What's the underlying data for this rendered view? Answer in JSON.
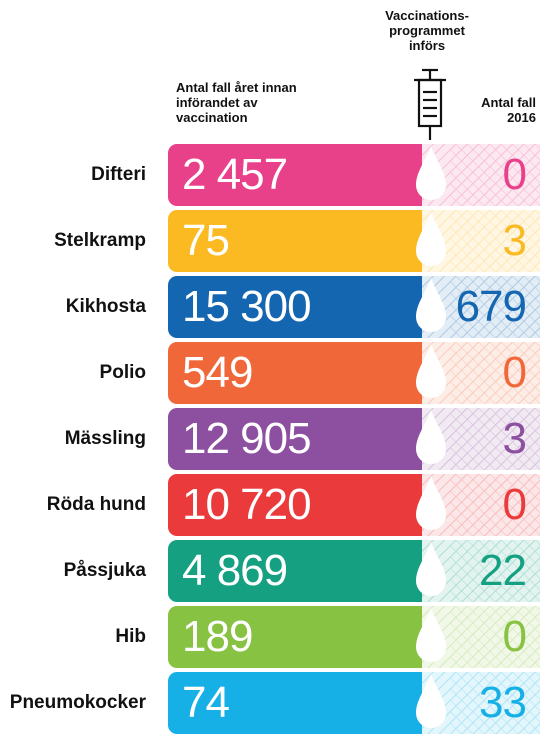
{
  "headers": {
    "before": "Antal fall året innan införandet av vaccination",
    "intro": "Vaccinations-programmet införs",
    "after": "Antal fall 2016"
  },
  "chart_data": {
    "type": "table",
    "categories": [
      "Difteri",
      "Stelkramp",
      "Kikhosta",
      "Polio",
      "Mässling",
      "Röda hund",
      "Påssjuka",
      "Hib",
      "Pneumokocker"
    ],
    "series": [
      {
        "name": "Antal fall året innan införandet av vaccination",
        "values": [
          2457,
          75,
          15300,
          549,
          12905,
          10720,
          4869,
          189,
          74
        ]
      },
      {
        "name": "Antal fall 2016",
        "values": [
          0,
          3,
          679,
          0,
          3,
          0,
          22,
          0,
          33
        ]
      }
    ],
    "colors": [
      "#e8418a",
      "#fbba21",
      "#1566b0",
      "#f0673a",
      "#8d4f9f",
      "#ea3a3c",
      "#15a082",
      "#87c242",
      "#17b0e6"
    ]
  },
  "rows": [
    {
      "label": "Difteri",
      "before": "2 457",
      "after": "0"
    },
    {
      "label": "Stelkramp",
      "before": "75",
      "after": "3"
    },
    {
      "label": "Kikhosta",
      "before": "15 300",
      "after": "679"
    },
    {
      "label": "Polio",
      "before": "549",
      "after": "0"
    },
    {
      "label": "Mässling",
      "before": "12 905",
      "after": "3"
    },
    {
      "label": "Röda hund",
      "before": "10 720",
      "after": "0"
    },
    {
      "label": "Påssjuka",
      "before": "4 869",
      "after": "22"
    },
    {
      "label": "Hib",
      "before": "189",
      "after": "0"
    },
    {
      "label": "Pneumokocker",
      "before": "74",
      "after": "33"
    }
  ]
}
